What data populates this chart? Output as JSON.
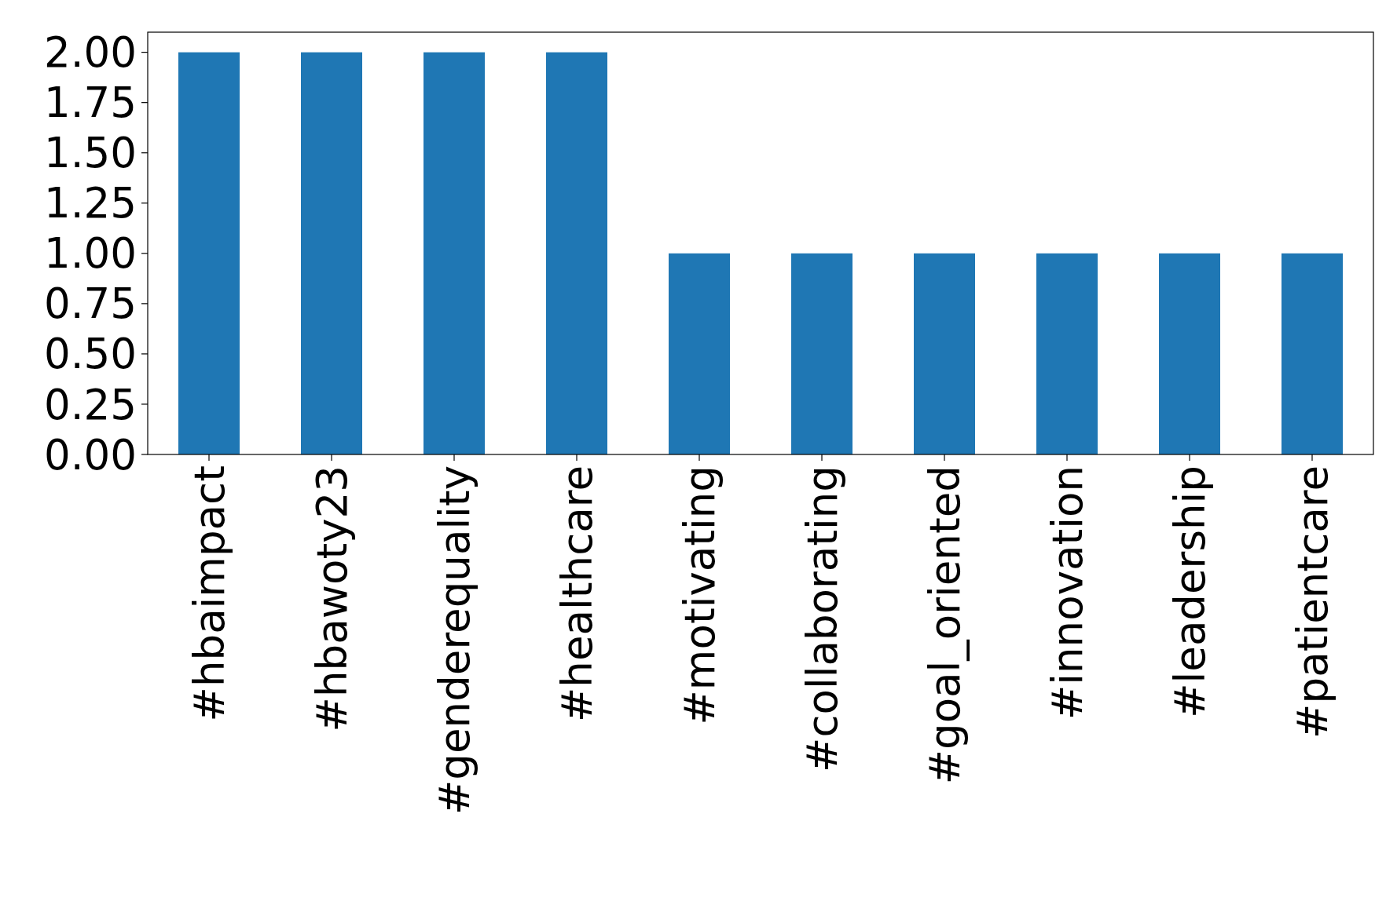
{
  "chart_data": {
    "type": "bar",
    "categories": [
      "#hbaimpact",
      "#hbawoty23",
      "#genderequality",
      "#healthcare",
      "#motivating",
      "#collaborating",
      "#goal_oriented",
      "#innovation",
      "#leadership",
      "#patientcare"
    ],
    "values": [
      2,
      2,
      2,
      2,
      1,
      1,
      1,
      1,
      1,
      1
    ],
    "color": "#1f77b4",
    "ylim": [
      0,
      2.1
    ],
    "yticks": [
      {
        "value": 0,
        "label": "0.00"
      },
      {
        "value": 0.25,
        "label": "0.25"
      },
      {
        "value": 0.5,
        "label": "0.50"
      },
      {
        "value": 0.75,
        "label": "0.75"
      },
      {
        "value": 1,
        "label": "1.00"
      },
      {
        "value": 1.25,
        "label": "1.25"
      },
      {
        "value": 1.5,
        "label": "1.50"
      },
      {
        "value": 1.75,
        "label": "1.75"
      },
      {
        "value": 2,
        "label": "2.00"
      }
    ],
    "grid": false
  }
}
